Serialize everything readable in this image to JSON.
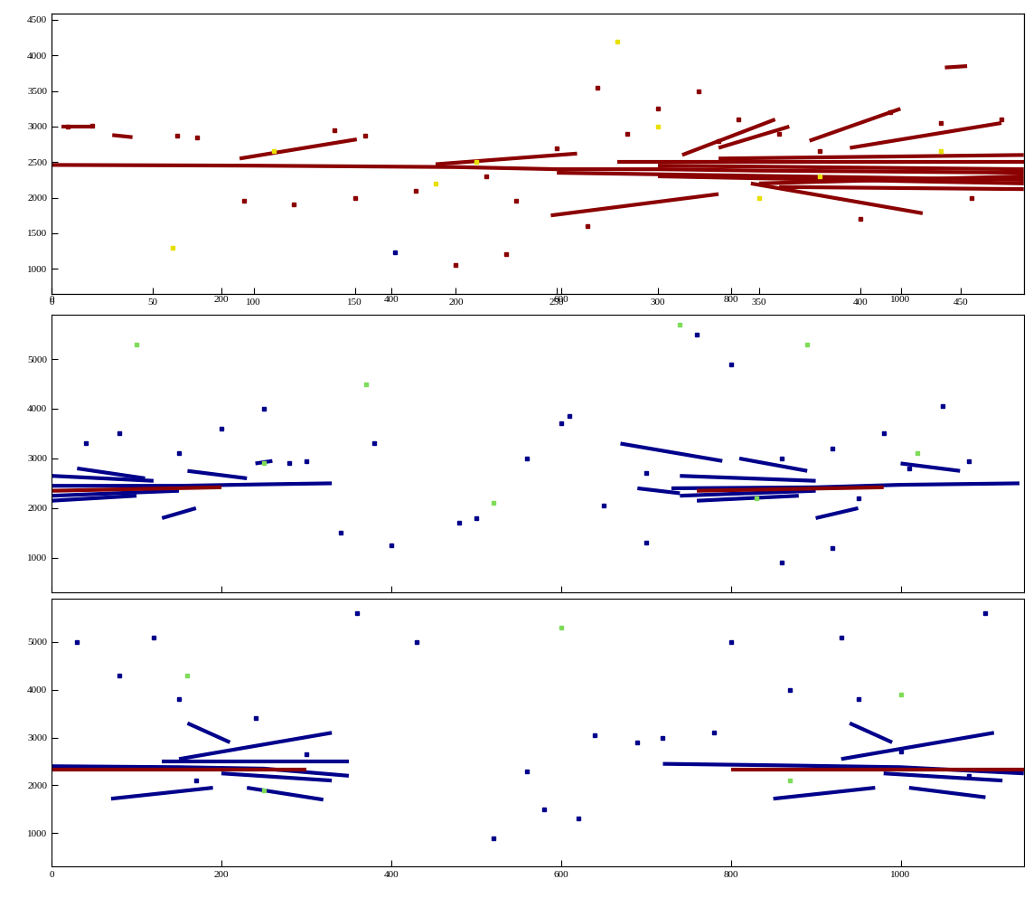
{
  "chart_data": [
    {
      "type": "line",
      "xlim": [
        0,
        481
      ],
      "xticks": [
        0,
        50,
        100,
        150,
        200,
        250,
        300,
        350,
        400,
        450
      ],
      "x2lim": [
        0,
        1145
      ],
      "x2ticks": [
        0,
        200,
        400,
        600,
        800,
        1000
      ],
      "ylim": [
        650,
        4590
      ],
      "yticks": [
        1000,
        1500,
        2000,
        2500,
        3000,
        3500,
        4000,
        4500
      ],
      "series": [
        {
          "type": "line",
          "color": "#8b0000",
          "x": [
            0,
            100,
            200,
            250,
            300,
            350,
            400,
            481
          ],
          "values": [
            2460,
            2450,
            2430,
            2400,
            2400,
            2380,
            2370,
            2350
          ]
        },
        {
          "type": "line",
          "color": "#8b0000",
          "x": [
            250,
            481
          ],
          "values": [
            2350,
            2250
          ]
        },
        {
          "type": "line",
          "color": "#8b0000",
          "x": [
            280,
            481
          ],
          "values": [
            2500,
            2500
          ]
        },
        {
          "type": "line",
          "color": "#8b0000",
          "x": [
            300,
            481
          ],
          "values": [
            2300,
            2200
          ]
        },
        {
          "type": "line",
          "color": "#8b0000",
          "x": [
            330,
            481
          ],
          "values": [
            2550,
            2600
          ]
        },
        {
          "type": "line",
          "color": "#8b0000",
          "x": [
            350,
            481
          ],
          "values": [
            2200,
            2300
          ]
        },
        {
          "type": "line",
          "color": "#8b0000",
          "x": [
            300,
            481
          ],
          "values": [
            2450,
            2400
          ]
        },
        {
          "type": "line",
          "color": "#8b0000",
          "x": [
            360,
            481
          ],
          "values": [
            2150,
            2120
          ]
        },
        {
          "type": "line",
          "color": "#8b0000",
          "x": [
            93,
            151
          ],
          "values": [
            2550,
            2820
          ]
        },
        {
          "type": "line",
          "color": "#8b0000",
          "x": [
            190,
            260
          ],
          "values": [
            2470,
            2620
          ]
        },
        {
          "type": "line",
          "color": "#8b0000",
          "x": [
            312,
            358
          ],
          "values": [
            2600,
            3100
          ]
        },
        {
          "type": "line",
          "color": "#8b0000",
          "x": [
            330,
            365
          ],
          "values": [
            2700,
            3000
          ]
        },
        {
          "type": "line",
          "color": "#8b0000",
          "x": [
            375,
            420
          ],
          "values": [
            2800,
            3250
          ]
        },
        {
          "type": "line",
          "color": "#8b0000",
          "x": [
            395,
            470
          ],
          "values": [
            2700,
            3050
          ]
        },
        {
          "type": "line",
          "color": "#8b0000",
          "x": [
            247,
            330
          ],
          "values": [
            1750,
            2050
          ]
        },
        {
          "type": "line",
          "color": "#8b0000",
          "x": [
            346,
            431
          ],
          "values": [
            2200,
            1780
          ]
        },
        {
          "type": "line",
          "color": "#8b0000",
          "x": [
            442,
            453
          ],
          "values": [
            3830,
            3850
          ]
        },
        {
          "type": "line",
          "color": "#8b0000",
          "x": [
            5,
            20
          ],
          "values": [
            3000,
            3000
          ]
        },
        {
          "type": "line",
          "color": "#8b0000",
          "x": [
            30,
            40
          ],
          "values": [
            2880,
            2850
          ]
        },
        {
          "type": "scatter",
          "marker": "square",
          "color": "#8b0000",
          "x": [
            8,
            20,
            62,
            72,
            95,
            120,
            140,
            155,
            180,
            200,
            215,
            230,
            250,
            270,
            285,
            300,
            320,
            340,
            360,
            380,
            400,
            415,
            440,
            455,
            470,
            265,
            330,
            225,
            150
          ],
          "values": [
            3000,
            3010,
            2870,
            2850,
            1950,
            1900,
            2950,
            2870,
            2100,
            1050,
            2300,
            1950,
            2700,
            3550,
            2900,
            3250,
            3500,
            3100,
            2900,
            2650,
            1700,
            3200,
            3050,
            2000,
            3100,
            1600,
            2800,
            1200,
            2000
          ]
        },
        {
          "type": "scatter",
          "marker": "square",
          "color": "#00008b",
          "x": [
            170
          ],
          "values": [
            1230
          ]
        },
        {
          "type": "scatter",
          "marker": "square",
          "color": "#e8e000",
          "x": [
            110,
            190,
            210,
            280,
            300,
            350,
            380,
            440,
            60
          ],
          "values": [
            2650,
            2200,
            2500,
            4200,
            3000,
            2000,
            2300,
            2650,
            1300
          ]
        }
      ]
    },
    {
      "type": "line",
      "tick_labels": "y",
      "xlim": [
        0,
        1145
      ],
      "xticks": [
        0,
        200,
        400,
        600,
        800,
        1000
      ],
      "ylim": [
        300,
        5900
      ],
      "yticks": [
        1000,
        2000,
        3000,
        4000,
        5000
      ],
      "series": [
        {
          "type": "line",
          "color": "#00008b",
          "x": [
            0,
            150,
            250,
            330
          ],
          "values": [
            2450,
            2450,
            2480,
            2500
          ]
        },
        {
          "type": "line",
          "color": "#00008b",
          "x": [
            0,
            150
          ],
          "values": [
            2250,
            2350
          ]
        },
        {
          "type": "line",
          "color": "#00008b",
          "x": [
            0,
            120
          ],
          "values": [
            2650,
            2550
          ]
        },
        {
          "type": "line",
          "color": "#00008b",
          "x": [
            0,
            100
          ],
          "values": [
            2150,
            2250
          ]
        },
        {
          "type": "line",
          "color": "#8b0000",
          "x": [
            0,
            200
          ],
          "values": [
            2350,
            2420
          ]
        },
        {
          "type": "line",
          "color": "#00008b",
          "x": [
            30,
            110
          ],
          "values": [
            2800,
            2600
          ]
        },
        {
          "type": "line",
          "color": "#00008b",
          "x": [
            160,
            230
          ],
          "values": [
            2750,
            2600
          ]
        },
        {
          "type": "line",
          "color": "#00008b",
          "x": [
            130,
            170
          ],
          "values": [
            1800,
            2000
          ]
        },
        {
          "type": "line",
          "color": "#00008b",
          "x": [
            240,
            260
          ],
          "values": [
            2900,
            2950
          ]
        },
        {
          "type": "line",
          "color": "#00008b",
          "x": [
            730,
            900,
            1000,
            1140
          ],
          "values": [
            2400,
            2420,
            2470,
            2500
          ]
        },
        {
          "type": "line",
          "color": "#00008b",
          "x": [
            740,
            900
          ],
          "values": [
            2250,
            2350
          ]
        },
        {
          "type": "line",
          "color": "#00008b",
          "x": [
            740,
            900
          ],
          "values": [
            2650,
            2550
          ]
        },
        {
          "type": "line",
          "color": "#00008b",
          "x": [
            760,
            880
          ],
          "values": [
            2150,
            2250
          ]
        },
        {
          "type": "line",
          "color": "#8b0000",
          "x": [
            760,
            980
          ],
          "values": [
            2350,
            2420
          ]
        },
        {
          "type": "line",
          "color": "#00008b",
          "x": [
            670,
            790
          ],
          "values": [
            3300,
            2950
          ]
        },
        {
          "type": "line",
          "color": "#00008b",
          "x": [
            810,
            890
          ],
          "values": [
            3000,
            2750
          ]
        },
        {
          "type": "line",
          "color": "#00008b",
          "x": [
            690,
            740
          ],
          "values": [
            2400,
            2300
          ]
        },
        {
          "type": "line",
          "color": "#00008b",
          "x": [
            900,
            950
          ],
          "values": [
            1800,
            2000
          ]
        },
        {
          "type": "line",
          "color": "#00008b",
          "x": [
            1000,
            1070
          ],
          "values": [
            2900,
            2750
          ]
        },
        {
          "type": "scatter",
          "marker": "square",
          "color": "#00008b",
          "x": [
            40,
            80,
            150,
            200,
            250,
            280,
            300,
            340,
            380,
            500,
            560,
            600,
            610,
            650,
            700,
            760,
            800,
            860,
            920,
            980,
            1010,
            1050,
            1080,
            920,
            700,
            860,
            950,
            400,
            480
          ],
          "values": [
            3300,
            3500,
            3100,
            3600,
            4000,
            2900,
            2950,
            1500,
            3300,
            1800,
            3000,
            3700,
            3850,
            2050,
            2700,
            5500,
            4900,
            3000,
            3200,
            3500,
            2800,
            4050,
            2950,
            1200,
            1300,
            900,
            2200,
            1250,
            1700
          ]
        },
        {
          "type": "scatter",
          "marker": "square",
          "color": "#7fdc5a",
          "x": [
            100,
            250,
            370,
            520,
            740,
            890,
            1020,
            830
          ],
          "values": [
            5300,
            2900,
            4500,
            2100,
            5700,
            5300,
            3100,
            2200
          ]
        }
      ]
    },
    {
      "type": "line",
      "xlim": [
        0,
        1145
      ],
      "xticks": [
        0,
        200,
        400,
        600,
        800,
        1000
      ],
      "ylim": [
        300,
        5900
      ],
      "yticks": [
        1000,
        2000,
        3000,
        4000,
        5000
      ],
      "series": [
        {
          "type": "line",
          "color": "#00008b",
          "x": [
            0,
            150,
            250,
            350
          ],
          "values": [
            2400,
            2380,
            2350,
            2200
          ]
        },
        {
          "type": "line",
          "color": "#8b0000",
          "x": [
            0,
            300
          ],
          "values": [
            2330,
            2330
          ]
        },
        {
          "type": "line",
          "color": "#00008b",
          "x": [
            130,
            350
          ],
          "values": [
            2500,
            2500
          ]
        },
        {
          "type": "line",
          "color": "#00008b",
          "x": [
            150,
            330
          ],
          "values": [
            2550,
            3100
          ]
        },
        {
          "type": "line",
          "color": "#00008b",
          "x": [
            70,
            190
          ],
          "values": [
            1720,
            1950
          ]
        },
        {
          "type": "line",
          "color": "#00008b",
          "x": [
            230,
            320
          ],
          "values": [
            1950,
            1700
          ]
        },
        {
          "type": "line",
          "color": "#00008b",
          "x": [
            160,
            210
          ],
          "values": [
            3300,
            2900
          ]
        },
        {
          "type": "line",
          "color": "#00008b",
          "x": [
            200,
            330
          ],
          "values": [
            2250,
            2100
          ]
        },
        {
          "type": "line",
          "color": "#00008b",
          "x": [
            720,
            850,
            1000,
            1145
          ],
          "values": [
            2450,
            2420,
            2380,
            2250
          ]
        },
        {
          "type": "line",
          "color": "#8b0000",
          "x": [
            800,
            1145
          ],
          "values": [
            2330,
            2330
          ]
        },
        {
          "type": "line",
          "color": "#00008b",
          "x": [
            930,
            1110
          ],
          "values": [
            2550,
            3100
          ]
        },
        {
          "type": "line",
          "color": "#00008b",
          "x": [
            850,
            970
          ],
          "values": [
            1720,
            1950
          ]
        },
        {
          "type": "line",
          "color": "#00008b",
          "x": [
            1010,
            1100
          ],
          "values": [
            1950,
            1750
          ]
        },
        {
          "type": "line",
          "color": "#00008b",
          "x": [
            940,
            990
          ],
          "values": [
            3300,
            2900
          ]
        },
        {
          "type": "line",
          "color": "#00008b",
          "x": [
            980,
            1120
          ],
          "values": [
            2250,
            2100
          ]
        },
        {
          "type": "scatter",
          "marker": "square",
          "color": "#00008b",
          "x": [
            30,
            80,
            120,
            150,
            170,
            240,
            300,
            360,
            430,
            520,
            580,
            640,
            690,
            720,
            780,
            800,
            870,
            930,
            950,
            1000,
            1080,
            1100,
            560,
            620
          ],
          "values": [
            5000,
            4300,
            5100,
            3800,
            2100,
            3400,
            2650,
            5600,
            5000,
            900,
            1500,
            3050,
            2900,
            3000,
            3100,
            5000,
            4000,
            5100,
            3800,
            2700,
            2200,
            5600,
            2300,
            1300
          ]
        },
        {
          "type": "scatter",
          "marker": "square",
          "color": "#7fdc5a",
          "x": [
            160,
            1000,
            600,
            250,
            870
          ],
          "values": [
            4300,
            3900,
            5300,
            1900,
            2100
          ]
        }
      ]
    }
  ]
}
